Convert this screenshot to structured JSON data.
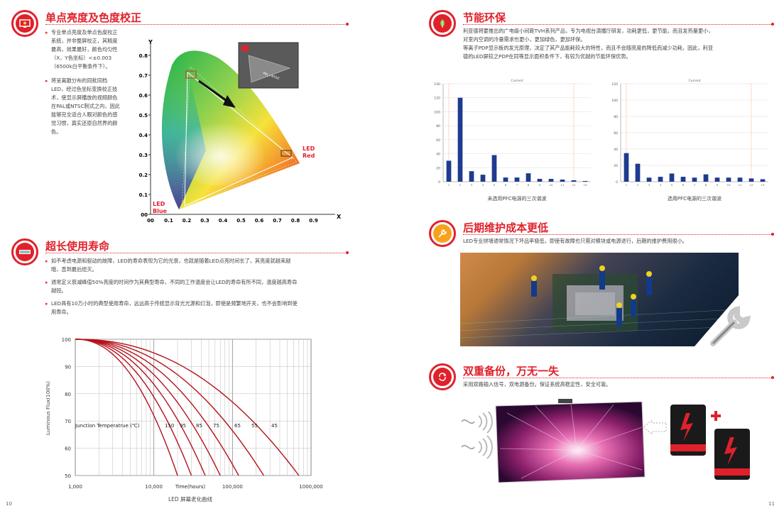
{
  "page_numbers": {
    "left": "10",
    "right": "11"
  },
  "s1": {
    "title": "单点亮度及色度校正",
    "b1": [
      "专业单点亮度及单点色度校正",
      "系统，并非整屏校正，其精度",
      "最高，效果最好，颜色均匀性",
      "（X，Y色坐标）<±0.003",
      "（6500k白平衡条件下）。"
    ],
    "b2": [
      "将呈离散分布的同批同档",
      "LED，经过色坐标变换校正技",
      "术，使显示屏播放的视频颜色",
      "在PAL或NTSC制式之内，因此",
      "能够完全适合人眼对颜色的感",
      "觉习惯，真实还原自然界的颜",
      "色。"
    ]
  },
  "cie": {
    "y_axis": "Y",
    "x_axis": "X",
    "y_ticks": [
      "0.8",
      "0.7",
      "0.6",
      "0.5",
      "0.4",
      "0.3",
      "0.2",
      "0.1",
      "00"
    ],
    "x_ticks": [
      "00",
      "0.1",
      "0.2",
      "0.3",
      "0.4",
      "0.5",
      "0.6",
      "0.7",
      "0.8",
      "0.9"
    ],
    "led_red": [
      "LED",
      "Red"
    ],
    "led_blue": [
      "LED",
      "Blue"
    ],
    "inset_label": "PAL / NTSC"
  },
  "s2": {
    "title": "超长使用寿命",
    "b1": [
      "如不考虑电源和驱动的故障，LED的寿命表现为它的光衰，也就是随着LED点亮时间长了，其亮度就越来越",
      "暗，直到最后熄灭。"
    ],
    "b2": [
      "通常定义衰减峰值50%亮度的时间作为其典型寿命，不同的工作温度会让LED的寿命有所不同，温度越高寿命",
      "越短。"
    ],
    "b3": [
      "LED具有10万小时的典型使用寿命，远远高于传统显示背光光源和灯泡，即使是频繁地开关，也不会影响到使",
      "用寿命。"
    ]
  },
  "chart_data": [
    {
      "type": "line",
      "title": "",
      "caption": "LED 屏幕老化曲线",
      "xlabel": "Time(hours)",
      "ylabel": "Luminous Flux(100%)",
      "x_scale": "log",
      "xlim": [
        1000,
        1000000
      ],
      "ylim": [
        50,
        100
      ],
      "x_ticks": [
        "1,000",
        "10,000",
        "100,000",
        "1000,000"
      ],
      "y_ticks": [
        "100",
        "90",
        "80",
        "70",
        "60",
        "50"
      ],
      "annotation": "Junction Temperatrue (℃)",
      "series_labels": [
        "150",
        "95",
        "85",
        "75",
        "65",
        "55",
        "45"
      ],
      "end_hours": [
        20000,
        30000,
        45000,
        70000,
        120000,
        250000,
        700000
      ]
    },
    {
      "type": "bar",
      "title": "Current",
      "caption": "未选用PFC电源的三次谐波",
      "y_ticks": [
        "140",
        "120",
        "100",
        "80",
        "60",
        "40",
        "20",
        "0"
      ],
      "ylim": [
        0,
        140
      ],
      "categories": [
        "1",
        "2",
        "3",
        "4",
        "5",
        "6",
        "7",
        "8",
        "9",
        "10",
        "11",
        "12",
        "13"
      ],
      "values": [
        30,
        120,
        15,
        10,
        38,
        6,
        6,
        12,
        4,
        4,
        3,
        2,
        1
      ]
    },
    {
      "type": "bar",
      "title": "Current",
      "caption": "选用PFC电源的三次谐波",
      "y_ticks": [
        "120",
        "100",
        "80",
        "60",
        "40",
        "20",
        "0"
      ],
      "ylim": [
        0,
        120
      ],
      "categories": [
        "1",
        "2",
        "3",
        "4",
        "5",
        "6",
        "7",
        "8",
        "9",
        "10",
        "11",
        "12",
        "13"
      ],
      "values": [
        35,
        22,
        5,
        6,
        10,
        6,
        5,
        9,
        5,
        5,
        5,
        4,
        3
      ]
    }
  ],
  "s3": {
    "title": "节能环保",
    "lines": [
      "利亚德将要推出的广电级小间距TVH系列产品，专为电视台演播厅研发，功耗更低，更节能，而且发热量更小，",
      "对室内空调的冷量需求也更小，更加绿色，更加环保。",
      "等离子PDP显示板的发光原理，决定了其产品能耗较大的特性，而且不会随亮度的降低而减少功耗，因此，利亚",
      "德的LED屏较之PDP在同等显示面积条件下，有较为优越的节能环保优势。"
    ]
  },
  "s4": {
    "title": "后期维护成本更低",
    "line": "LED专业拼墙通常情况下坏品率极低，即使有故障也只需对模块或电源进行，后期的维护费用很小。"
  },
  "s5": {
    "title": "双重备份，万无一失",
    "line": "采用双路输入信号，双电源备份。保证系统高稳定性，安全可靠。"
  },
  "colors": {
    "accent": "#e0212b",
    "curve": "#b5121b",
    "bar": "#1f3b8f"
  }
}
